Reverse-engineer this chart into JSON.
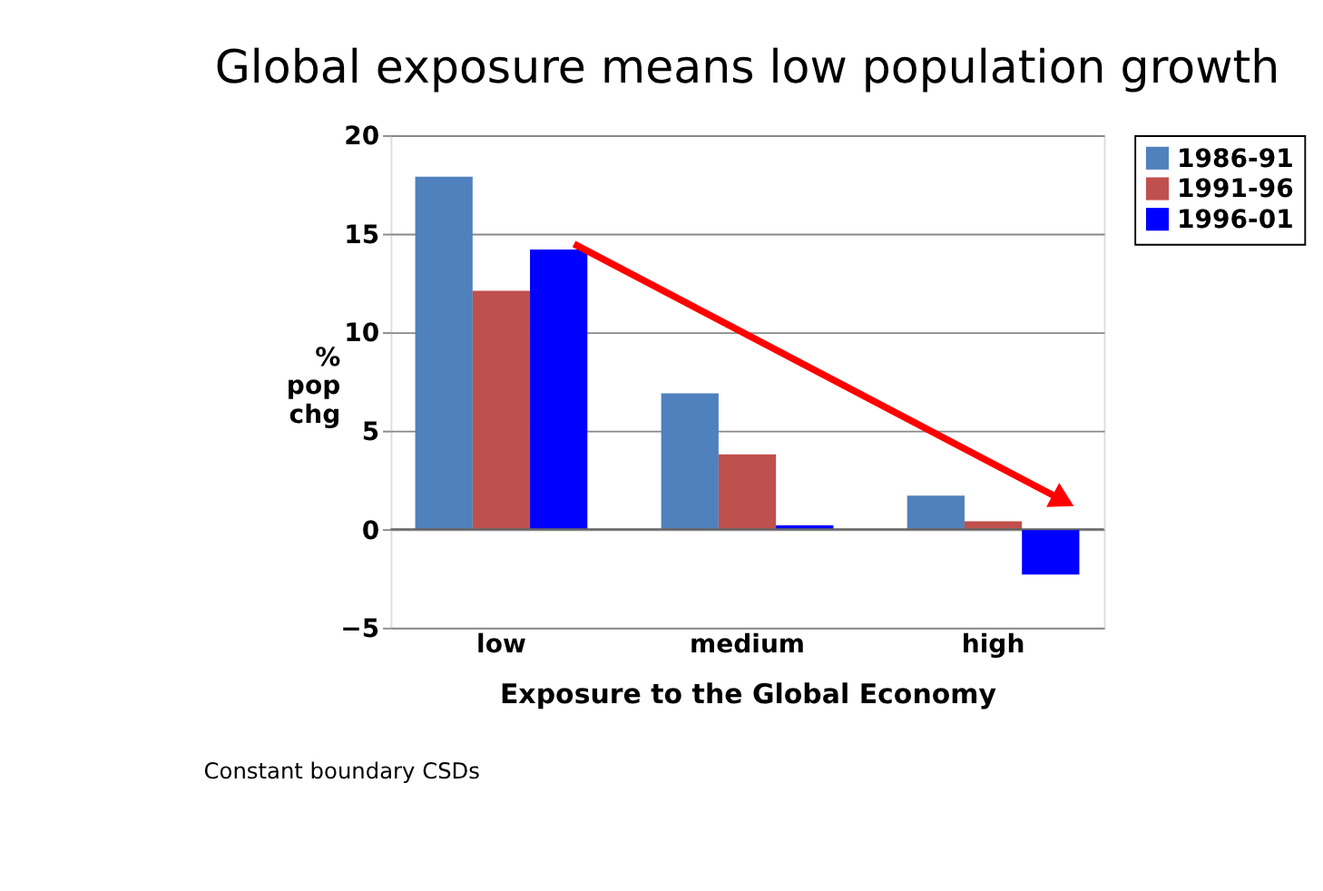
{
  "chart_data": {
    "type": "bar",
    "title": "Global exposure means low population growth",
    "xlabel": "Exposure to the Global Economy",
    "ylabel": "% pop chg",
    "categories": [
      "low",
      "medium",
      "high"
    ],
    "series": [
      {
        "name": "1986-91",
        "color": "#4f81bd",
        "values": [
          17.9,
          6.9,
          1.7
        ]
      },
      {
        "name": "1991-96",
        "color": "#c0504d",
        "values": [
          12.1,
          3.8,
          0.4
        ]
      },
      {
        "name": "1996-01",
        "color": "#0000ff",
        "values": [
          14.2,
          0.2,
          -2.3
        ]
      }
    ],
    "ylim": [
      -5,
      20
    ],
    "yticks": [
      -5,
      0,
      5,
      10,
      15,
      20
    ],
    "grid": "y",
    "legend": "right",
    "annotations": [
      "Constant boundary CSDs"
    ]
  }
}
